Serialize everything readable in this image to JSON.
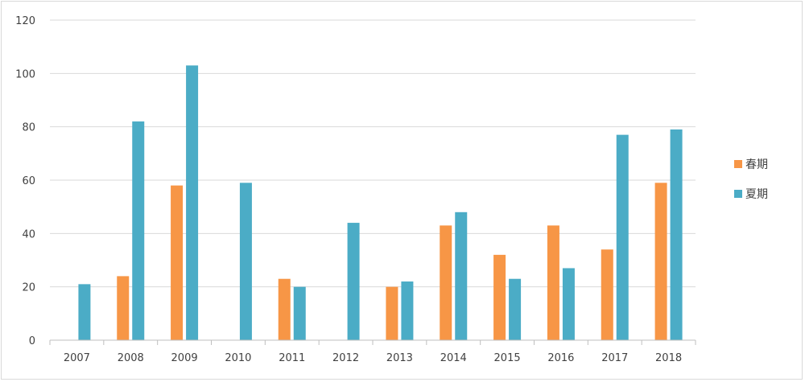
{
  "chart_data": {
    "type": "bar",
    "categories": [
      "2007",
      "2008",
      "2009",
      "2010",
      "2011",
      "2012",
      "2013",
      "2014",
      "2015",
      "2016",
      "2017",
      "2018"
    ],
    "series": [
      {
        "name": "春期",
        "color": "#f79646",
        "values": [
          null,
          24,
          58,
          null,
          23,
          null,
          20,
          43,
          32,
          43,
          34,
          59
        ]
      },
      {
        "name": "夏期",
        "color": "#4bacc6",
        "values": [
          21,
          82,
          103,
          59,
          20,
          44,
          22,
          48,
          23,
          27,
          77,
          79
        ]
      }
    ],
    "ylim": [
      0,
      120
    ],
    "yticks": [
      0,
      20,
      40,
      60,
      80,
      100,
      120
    ],
    "grid": true,
    "legend": "right"
  }
}
